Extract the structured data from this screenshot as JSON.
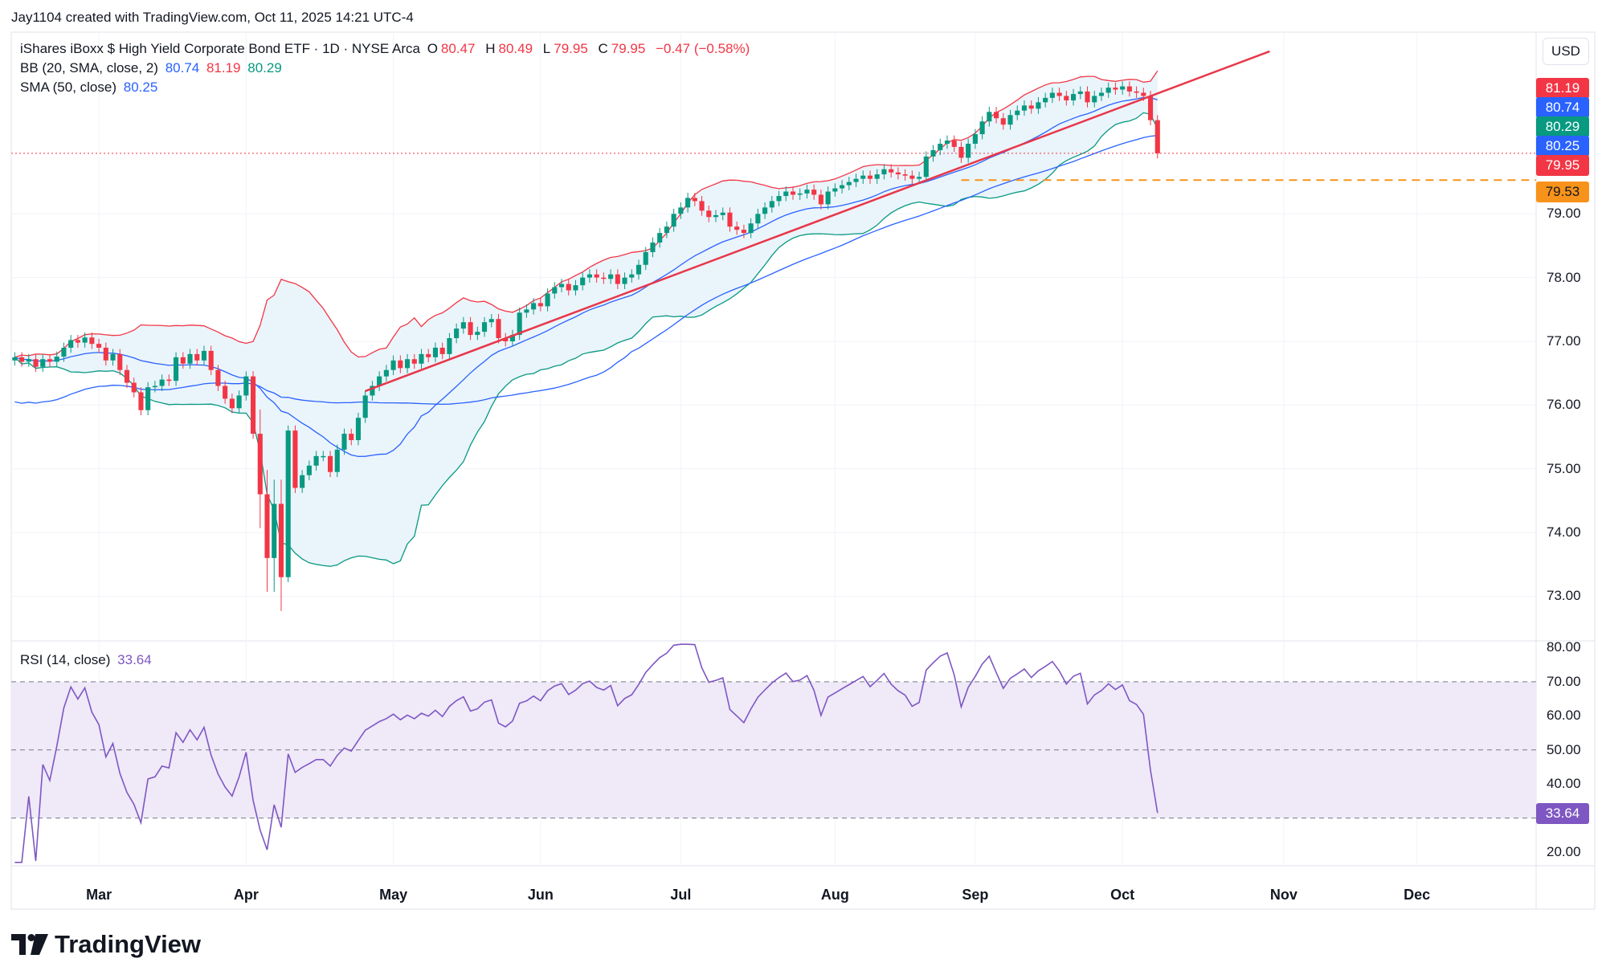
{
  "top_bar": {
    "credit": "Jay1104 created with TradingView.com, Oct 11, 2025 14:21 UTC-4"
  },
  "legend": {
    "symbol": "iShares iBoxx $ High Yield Corporate Bond ETF · 1D · NYSE Arca",
    "o_label": "O",
    "o": "80.47",
    "h_label": "H",
    "h": "80.49",
    "l_label": "L",
    "l": "79.95",
    "c_label": "C",
    "c": "79.95",
    "change": "−0.47 (−0.58%)",
    "bb_label": "BB (20, SMA, close, 2)",
    "bb_basis": "80.74",
    "bb_upper": "81.19",
    "bb_lower": "80.29",
    "sma_label": "SMA (50, close)",
    "sma_value": "80.25",
    "rsi_label": "RSI (14, close)",
    "rsi_value": "33.64"
  },
  "currency_button": "USD",
  "price_labels": {
    "upper": "81.19",
    "basis": "80.74",
    "lower": "80.29",
    "sma": "80.25",
    "last": "79.95",
    "level": "79.53",
    "rsi": "33.64"
  },
  "colors": {
    "up": "#089981",
    "down": "#f23645",
    "bb_basis": "#2962ff",
    "bb_upper": "#f23645",
    "bb_lower": "#089981",
    "bb_fill": "#eaf4fb",
    "sma": "#2962ff",
    "rsi": "#7e57c2",
    "rsi_band": "#efe9f8",
    "level": "#f7931a",
    "trend": "#e8374a"
  },
  "logo_text": "TradingView",
  "chart_data": [
    {
      "type": "candlestick",
      "title": "iShares iBoxx $ High Yield Corporate Bond ETF · 1D · NYSE Arca",
      "ylim": [
        72.3,
        81.7
      ],
      "y_ticks": [
        "73.00",
        "74.00",
        "75.00",
        "76.00",
        "77.00",
        "78.00",
        "79.00"
      ],
      "x_months": [
        "Mar",
        "Apr",
        "May",
        "Jun",
        "Jul",
        "Aug",
        "Sep",
        "Oct",
        "Nov",
        "Dec"
      ],
      "x_month_day_index": [
        12,
        33,
        54,
        75,
        95,
        117,
        137,
        158,
        181,
        200
      ],
      "x_index_range": [
        -0.5,
        217
      ],
      "closes": [
        76.75,
        76.68,
        76.72,
        76.6,
        76.72,
        76.68,
        76.76,
        76.9,
        77.02,
        76.98,
        77.06,
        76.96,
        76.9,
        76.7,
        76.8,
        76.55,
        76.35,
        76.2,
        75.92,
        76.28,
        76.3,
        76.4,
        76.38,
        76.75,
        76.65,
        76.8,
        76.7,
        76.85,
        76.55,
        76.3,
        76.1,
        75.95,
        76.15,
        76.45,
        75.55,
        74.6,
        73.6,
        74.45,
        73.3,
        75.6,
        74.7,
        74.9,
        75.05,
        75.2,
        75.2,
        74.95,
        75.3,
        75.55,
        75.45,
        75.8,
        76.15,
        76.3,
        76.45,
        76.55,
        76.7,
        76.58,
        76.72,
        76.65,
        76.8,
        76.75,
        76.9,
        76.8,
        77.05,
        77.2,
        77.3,
        77.1,
        77.15,
        77.3,
        77.35,
        77.05,
        77.0,
        77.1,
        77.45,
        77.5,
        77.6,
        77.55,
        77.75,
        77.85,
        77.9,
        77.8,
        77.88,
        78.0,
        78.05,
        78.0,
        77.98,
        78.05,
        77.9,
        78.0,
        78.05,
        78.2,
        78.4,
        78.55,
        78.7,
        78.8,
        79.0,
        79.1,
        79.25,
        79.2,
        79.05,
        78.95,
        78.98,
        79.02,
        78.8,
        78.75,
        78.7,
        78.85,
        79.0,
        79.1,
        79.2,
        79.28,
        79.35,
        79.3,
        79.32,
        79.38,
        79.3,
        79.15,
        79.35,
        79.4,
        79.45,
        79.5,
        79.55,
        79.6,
        79.55,
        79.62,
        79.7,
        79.65,
        79.62,
        79.6,
        79.55,
        79.58,
        79.9,
        80.0,
        80.1,
        80.15,
        80.05,
        79.88,
        80.1,
        80.25,
        80.45,
        80.6,
        80.5,
        80.4,
        80.55,
        80.62,
        80.7,
        80.65,
        80.75,
        80.82,
        80.9,
        80.85,
        80.78,
        80.88,
        80.92,
        80.75,
        80.85,
        80.9,
        80.98,
        80.95,
        81.0,
        80.92,
        80.9,
        80.85,
        80.47,
        79.95
      ],
      "series": [
        {
          "name": "BB upper",
          "values": "computed: SMA20(close) + 2·stdev20(close) — see script"
        },
        {
          "name": "BB basis",
          "values": "computed: SMA20(close)"
        },
        {
          "name": "BB lower",
          "values": "computed: SMA20(close) − 2·stdev20(close)"
        },
        {
          "name": "SMA 50",
          "values": "computed: SMA50(close), last 80.25"
        }
      ],
      "horizontal_level": 79.53,
      "last_price": 79.95,
      "trendline": {
        "from": {
          "day_index": 50,
          "price": 76.22
        },
        "to": {
          "day_index": 179,
          "price": 81.55
        }
      }
    },
    {
      "type": "line",
      "title": "RSI (14, close)",
      "ylim": [
        16,
        82
      ],
      "y_ticks": [
        "20.00",
        "30.00",
        "40.00",
        "50.00",
        "60.00",
        "70.00",
        "80.00"
      ],
      "reference_lines": [
        30,
        50,
        70
      ],
      "last_value": 33.64,
      "values": "computed from closes by the RSI(14) formula — see script"
    }
  ]
}
